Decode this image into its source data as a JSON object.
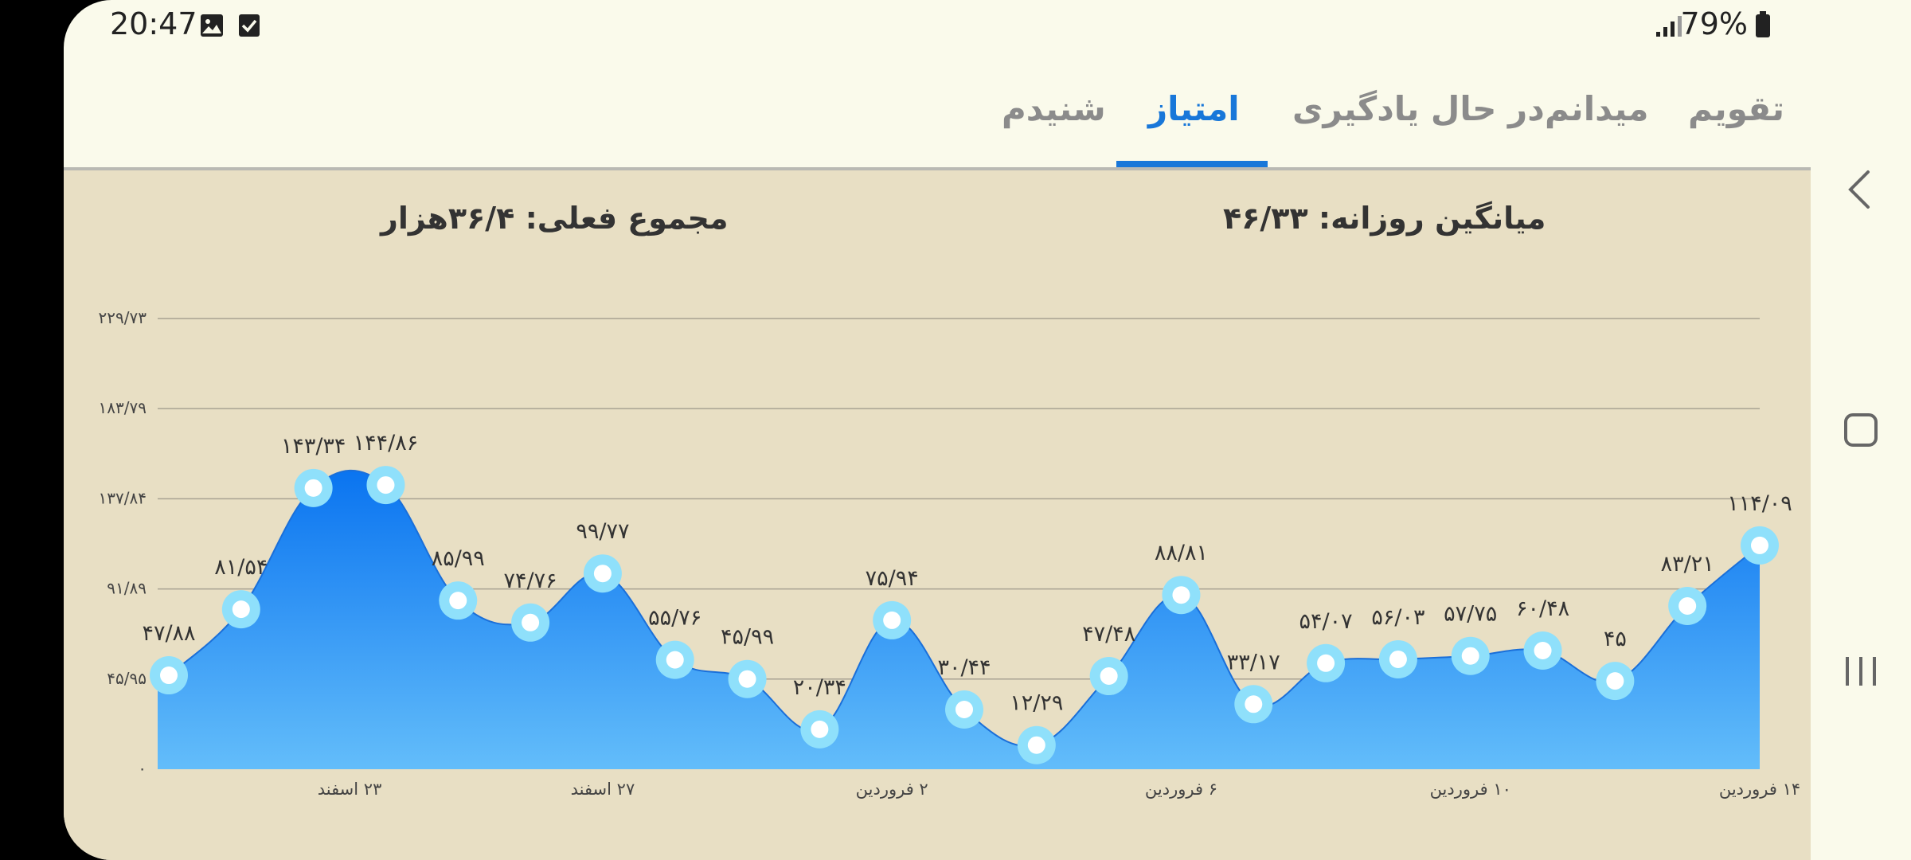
{
  "status_bar": {
    "time": "20:47",
    "battery": "79%",
    "icons": [
      "image-notification-icon",
      "checkbox-notification-icon",
      "signal-icon",
      "battery-icon"
    ]
  },
  "tabs": [
    {
      "label": "تقویم",
      "active": false
    },
    {
      "label": "میدانم",
      "active": false
    },
    {
      "label": "در حال یادگیری",
      "active": false
    },
    {
      "label": "امتیاز",
      "active": true
    },
    {
      "label": "شنیدم",
      "active": false
    }
  ],
  "summary": {
    "daily_average": "میانگین روزانه: ۴۶/۳۳",
    "current_total": "مجموع فعلی: ۳۶/۴هزار"
  },
  "colors": {
    "accent": "#1877d9",
    "area_top": "#0a74f0",
    "area_bottom": "#63bdfa",
    "point_ring": "#8fe0fb",
    "panel_bg": "#e8dfc4"
  },
  "chart_data": {
    "type": "area",
    "y_tick_labels": [
      "۰",
      "۴۵/۹۵",
      "۹۱/۸۹",
      "۱۳۷/۸۴",
      "۱۸۳/۷۹",
      "۲۲۹/۷۳"
    ],
    "y_ticks": [
      0,
      45.95,
      91.89,
      137.84,
      183.79,
      229.73
    ],
    "ylim": [
      0,
      229.73
    ],
    "grid": true,
    "x_tick_labels": [
      {
        "index": 2.5,
        "label": "۲۳ اسفند"
      },
      {
        "index": 6,
        "label": "۲۷ اسفند"
      },
      {
        "index": 10,
        "label": "۲ فروردین"
      },
      {
        "index": 14,
        "label": "۶ فروردین"
      },
      {
        "index": 18,
        "label": "۱۰ فروردین"
      },
      {
        "index": 22,
        "label": "۱۴ فروردین"
      }
    ],
    "values": [
      47.88,
      81.54,
      143.34,
      144.86,
      85.99,
      74.76,
      99.77,
      55.76,
      45.99,
      20.34,
      75.94,
      30.44,
      12.29,
      47.48,
      88.81,
      33.17,
      54.07,
      56.03,
      57.75,
      60.48,
      45,
      83.21,
      114.09
    ],
    "value_labels": [
      "۴۷/۸۸",
      "۸۱/۵۴",
      "۱۴۳/۳۴",
      "۱۴۴/۸۶",
      "۸۵/۹۹",
      "۷۴/۷۶",
      "۹۹/۷۷",
      "۵۵/۷۶",
      "۴۵/۹۹",
      "۲۰/۳۴",
      "۷۵/۹۴",
      "۳۰/۴۴",
      "۱۲/۲۹",
      "۴۷/۴۸",
      "۸۸/۸۱",
      "۳۳/۱۷",
      "۵۴/۰۷",
      "۵۶/۰۳",
      "۵۷/۷۵",
      "۶۰/۴۸",
      "۴۵",
      "۸۳/۲۱",
      "۱۱۴/۰۹"
    ]
  }
}
